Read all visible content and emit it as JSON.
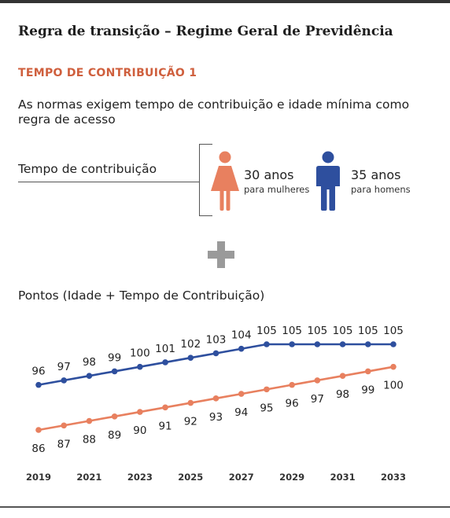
{
  "header": {
    "title": "Regra de transição – Regime Geral de Previdência",
    "section": "TEMPO DE CONTRIBUIÇÃO 1",
    "description": "As normas exigem tempo de contribuição e idade mínima como regra de acesso"
  },
  "contribution": {
    "label": "Tempo de contribuição",
    "women": {
      "years": "30 anos",
      "caption": "para mulheres"
    },
    "men": {
      "years": "35 anos",
      "caption": "para homens"
    }
  },
  "icons": {
    "women": "woman-icon",
    "men": "man-icon",
    "plus": "plus-icon"
  },
  "colors": {
    "men": "#2e4f9e",
    "women": "#e8805f",
    "section": "#cf5f3d",
    "plus": "#9a9a9a"
  },
  "points_title": "Pontos (Idade + Tempo de Contribuição)",
  "chart_data": {
    "type": "line",
    "x": [
      2019,
      2020,
      2021,
      2022,
      2023,
      2024,
      2025,
      2026,
      2027,
      2028,
      2029,
      2030,
      2031,
      2032,
      2033
    ],
    "x_tick_labels": [
      "2019",
      "2021",
      "2023",
      "2025",
      "2027",
      "2029",
      "2031",
      "2033"
    ],
    "series": [
      {
        "color": "#2e4f9e",
        "values": [
          96,
          97,
          98,
          99,
          100,
          101,
          102,
          103,
          104,
          105,
          105,
          105,
          105,
          105,
          105
        ]
      },
      {
        "color": "#e8805f",
        "values": [
          86,
          87,
          88,
          89,
          90,
          91,
          92,
          93,
          94,
          95,
          96,
          97,
          98,
          99,
          100
        ]
      }
    ],
    "grid": false,
    "legend": "none"
  }
}
